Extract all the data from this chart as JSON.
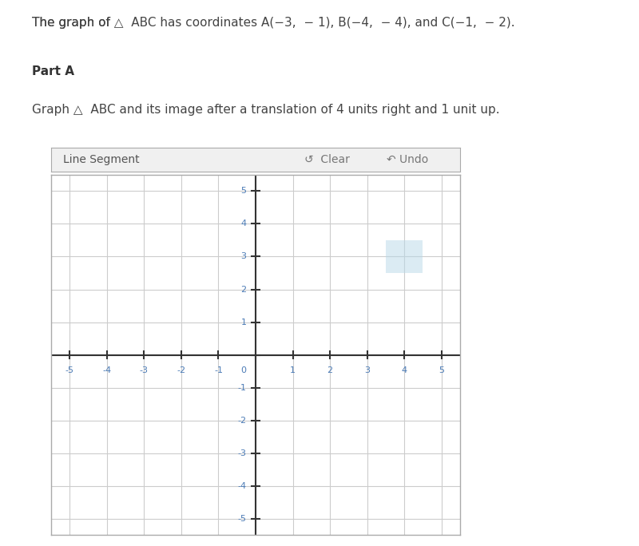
{
  "title_text": "The graph of △ ABC has coordinates A(−3,  − 1), B(−4,  − 4), and C(−1,  − 2).",
  "part_a_text": "Part A",
  "instruction_text": "Graph △ ABC and its image after a translation of 4 units right and 1 unit up.",
  "toolbar_text": "Line Segment",
  "clear_text": "Clear",
  "undo_text": "Undo",
  "xlim": [
    -5.5,
    5.5
  ],
  "ylim": [
    -5.5,
    5.5
  ],
  "axis_ticks": [
    -5,
    -4,
    -3,
    -2,
    -1,
    0,
    1,
    2,
    3,
    4,
    5
  ],
  "grid_color": "#cccccc",
  "axis_color": "#333333",
  "tick_label_color": "#4a7ab5",
  "background_color": "#ffffff",
  "plot_bg_color": "#ffffff",
  "border_color": "#aaaaaa",
  "toolbar_bg_color": "#f0f0f0",
  "highlight_x": 4,
  "highlight_y": 3,
  "highlight_color": "#b8d8e8",
  "fig_width": 8.0,
  "fig_height": 6.84
}
